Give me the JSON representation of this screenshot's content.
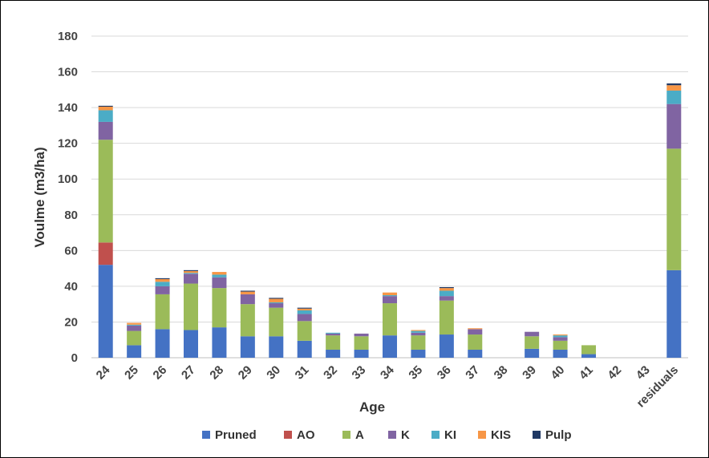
{
  "chart_data": {
    "type": "bar",
    "stacked": true,
    "title": "",
    "xlabel": "Age",
    "ylabel": "Voulme (m3/ha)",
    "ylim": [
      0,
      180
    ],
    "yticks": [
      0,
      20,
      40,
      60,
      80,
      100,
      120,
      140,
      160,
      180
    ],
    "grid": true,
    "legend_position": "bottom",
    "categories": [
      "24",
      "25",
      "26",
      "27",
      "28",
      "29",
      "30",
      "31",
      "32",
      "33",
      "34",
      "35",
      "36",
      "37",
      "38",
      "39",
      "40",
      "41",
      "42",
      "43",
      "residuals"
    ],
    "series": [
      {
        "name": "Pruned",
        "color": "#4472C4",
        "values": [
          52,
          7,
          16,
          15.5,
          17,
          12,
          12,
          9.5,
          4.5,
          4.5,
          12.5,
          4.5,
          13,
          4.5,
          0,
          5,
          4.5,
          2,
          0,
          0,
          49
        ]
      },
      {
        "name": "AO",
        "color": "#C0504D",
        "values": [
          12.5,
          0,
          0,
          0,
          0,
          0,
          0,
          0,
          0,
          0,
          0,
          0,
          0,
          0,
          0,
          0,
          0,
          0,
          0,
          0,
          0
        ]
      },
      {
        "name": "A",
        "color": "#9BBB59",
        "values": [
          57.5,
          8,
          19.5,
          26,
          22,
          18,
          16,
          11,
          8,
          7.5,
          18,
          8,
          19,
          8.5,
          0,
          7,
          5,
          5,
          0,
          0,
          68
        ]
      },
      {
        "name": "K",
        "color": "#8064A2",
        "values": [
          10,
          3,
          4.5,
          5.5,
          6,
          5.5,
          2.5,
          4,
          1,
          1.5,
          4,
          1.5,
          2.5,
          3,
          0,
          2.5,
          2,
          0,
          0,
          0,
          25
        ]
      },
      {
        "name": "KI",
        "color": "#4BACC6",
        "values": [
          6.5,
          0.5,
          2.5,
          0.5,
          1.5,
          0,
          0.5,
          2,
          0.5,
          0,
          0.5,
          1,
          3,
          0,
          0,
          0,
          1,
          0,
          0,
          0,
          7.5
        ]
      },
      {
        "name": "KIS",
        "color": "#F79646",
        "values": [
          2,
          1,
          1.5,
          1,
          1.5,
          1.5,
          2,
          1,
          0,
          0,
          1.5,
          0.5,
          1.5,
          0.5,
          0,
          0,
          0.5,
          0,
          0,
          0,
          3
        ]
      },
      {
        "name": "Pulp",
        "color": "#1F3864",
        "values": [
          0.5,
          0,
          0.5,
          0.5,
          0,
          0.5,
          0.5,
          0.5,
          0,
          0,
          0,
          0,
          0.5,
          0,
          0,
          0,
          0,
          0,
          0,
          0,
          1
        ]
      }
    ]
  }
}
